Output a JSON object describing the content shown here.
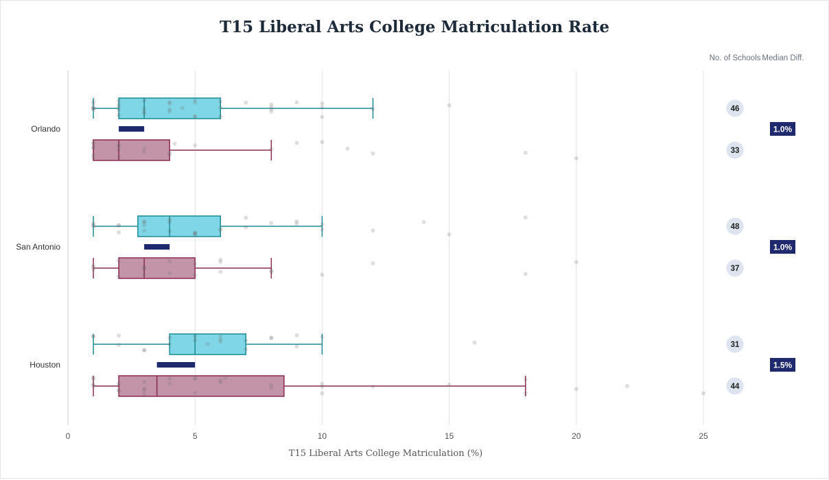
{
  "chart_data": {
    "type": "box",
    "title": "T15 Liberal Arts College Matriculation Rate",
    "xlabel": "T15 Liberal Arts College Matriculation (%)",
    "xlim": [
      0,
      25
    ],
    "xticks": [
      0,
      5,
      10,
      15,
      20,
      25
    ],
    "grid": true,
    "column_headers": {
      "count": "No. of Schools",
      "diff": "Median Diff."
    },
    "colors": {
      "blue_fill": "#7fd6e6",
      "blue_stroke": "#1a8a93",
      "red_fill": "#c394a8",
      "red_stroke": "#8a2a50",
      "diff_bar": "#1f2a6e",
      "count_badge": "#dde4ef"
    },
    "groups": [
      {
        "label": "Orlando",
        "median_diff": "1.0%",
        "top": {
          "count": "46",
          "min": 1,
          "q1": 2,
          "median": 3,
          "q3": 6,
          "max": 12,
          "points": [
            1,
            1,
            1,
            1,
            1,
            1,
            2,
            2,
            2,
            2,
            2,
            3,
            3,
            3,
            3,
            4,
            4,
            4,
            4,
            4.5,
            5,
            5,
            5,
            5,
            6,
            6,
            6,
            7,
            8,
            8,
            8,
            8,
            9,
            10,
            10,
            10,
            12,
            15
          ]
        },
        "bottom": {
          "count": "33",
          "min": 1,
          "q1": 1,
          "median": 2,
          "q3": 4,
          "max": 8,
          "points": [
            1,
            1,
            1,
            1,
            1,
            1,
            2,
            2,
            2,
            2,
            3,
            3,
            4,
            4,
            4.2,
            5,
            8,
            9,
            10,
            11,
            12,
            18,
            20
          ]
        }
      },
      {
        "label": "San Antonio",
        "median_diff": "1.0%",
        "top": {
          "count": "48",
          "min": 1,
          "q1": 2.75,
          "median": 4,
          "q3": 6,
          "max": 10,
          "points": [
            1,
            1,
            1,
            2,
            2,
            2,
            3,
            3,
            3,
            3,
            4,
            4,
            4,
            5,
            5,
            5,
            5,
            6,
            6,
            7,
            7,
            8,
            9,
            9,
            10,
            10,
            12,
            14,
            15,
            18
          ]
        },
        "bottom": {
          "count": "37",
          "min": 1,
          "q1": 2,
          "median": 3,
          "q3": 5,
          "max": 8,
          "points": [
            1,
            1,
            1,
            2,
            2,
            3,
            3,
            3,
            3,
            4,
            4,
            5,
            5,
            6,
            6,
            6,
            8,
            8,
            10,
            12,
            18,
            20
          ]
        }
      },
      {
        "label": "Houston",
        "median_diff": "1.5%",
        "top": {
          "count": "31",
          "min": 1,
          "q1": 4,
          "median": 5,
          "q3": 7,
          "max": 10,
          "points": [
            1,
            1,
            2,
            2,
            3,
            3,
            4,
            4,
            5,
            5,
            5.5,
            6,
            6,
            6,
            7,
            7,
            8,
            8,
            9,
            9,
            10,
            16
          ]
        },
        "bottom": {
          "count": "44",
          "min": 1,
          "q1": 2,
          "median": 3.5,
          "q3": 8.5,
          "max": 18,
          "points": [
            1,
            1,
            1,
            1,
            2,
            2,
            2,
            2,
            3,
            3,
            3,
            3,
            4,
            4,
            5,
            5,
            5,
            6,
            6,
            6.2,
            8,
            8,
            10,
            10,
            10,
            12,
            15,
            18,
            18,
            20,
            22,
            25
          ]
        }
      }
    ]
  }
}
